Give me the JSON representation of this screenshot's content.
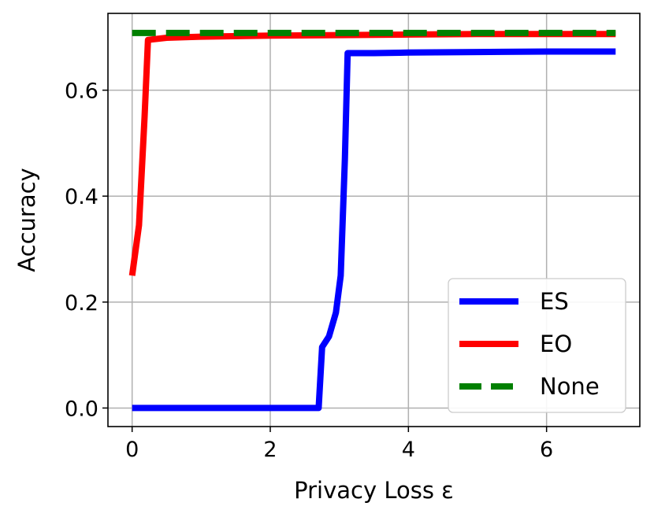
{
  "chart_data": {
    "type": "line",
    "title": "",
    "xlabel": "Privacy Loss ε",
    "ylabel": "Accuracy",
    "xlim": [
      -0.35,
      7.35
    ],
    "ylim": [
      -0.035,
      0.745
    ],
    "xticks": [
      0,
      2,
      4,
      6
    ],
    "yticks": [
      0.0,
      0.2,
      0.4,
      0.6
    ],
    "xtick_labels": [
      "0",
      "2",
      "4",
      "6"
    ],
    "ytick_labels": [
      "0.0",
      "0.2",
      "0.4",
      "0.6"
    ],
    "grid": true,
    "legend_position": "lower right",
    "series": [
      {
        "name": "ES",
        "color": "#0000ff",
        "style": "solid",
        "x": [
          0,
          0.5,
          1,
          1.5,
          2,
          2.5,
          2.7,
          2.75,
          2.85,
          2.95,
          3.02,
          3.08,
          3.12,
          3.5,
          4,
          5,
          6,
          7
        ],
        "y": [
          0,
          0,
          0,
          0,
          0,
          0,
          0,
          0.115,
          0.135,
          0.18,
          0.25,
          0.47,
          0.67,
          0.67,
          0.671,
          0.672,
          0.673,
          0.673
        ]
      },
      {
        "name": "EO",
        "color": "#ff0000",
        "style": "solid",
        "x": [
          0,
          0.1,
          0.18,
          0.23,
          0.5,
          1,
          2,
          3,
          4,
          5,
          6,
          7
        ],
        "y": [
          0.25,
          0.345,
          0.55,
          0.695,
          0.699,
          0.701,
          0.703,
          0.704,
          0.705,
          0.706,
          0.706,
          0.706
        ]
      },
      {
        "name": "None",
        "color": "#008000",
        "style": "dashed",
        "x": [
          0,
          7
        ],
        "y": [
          0.708,
          0.708
        ]
      }
    ]
  }
}
